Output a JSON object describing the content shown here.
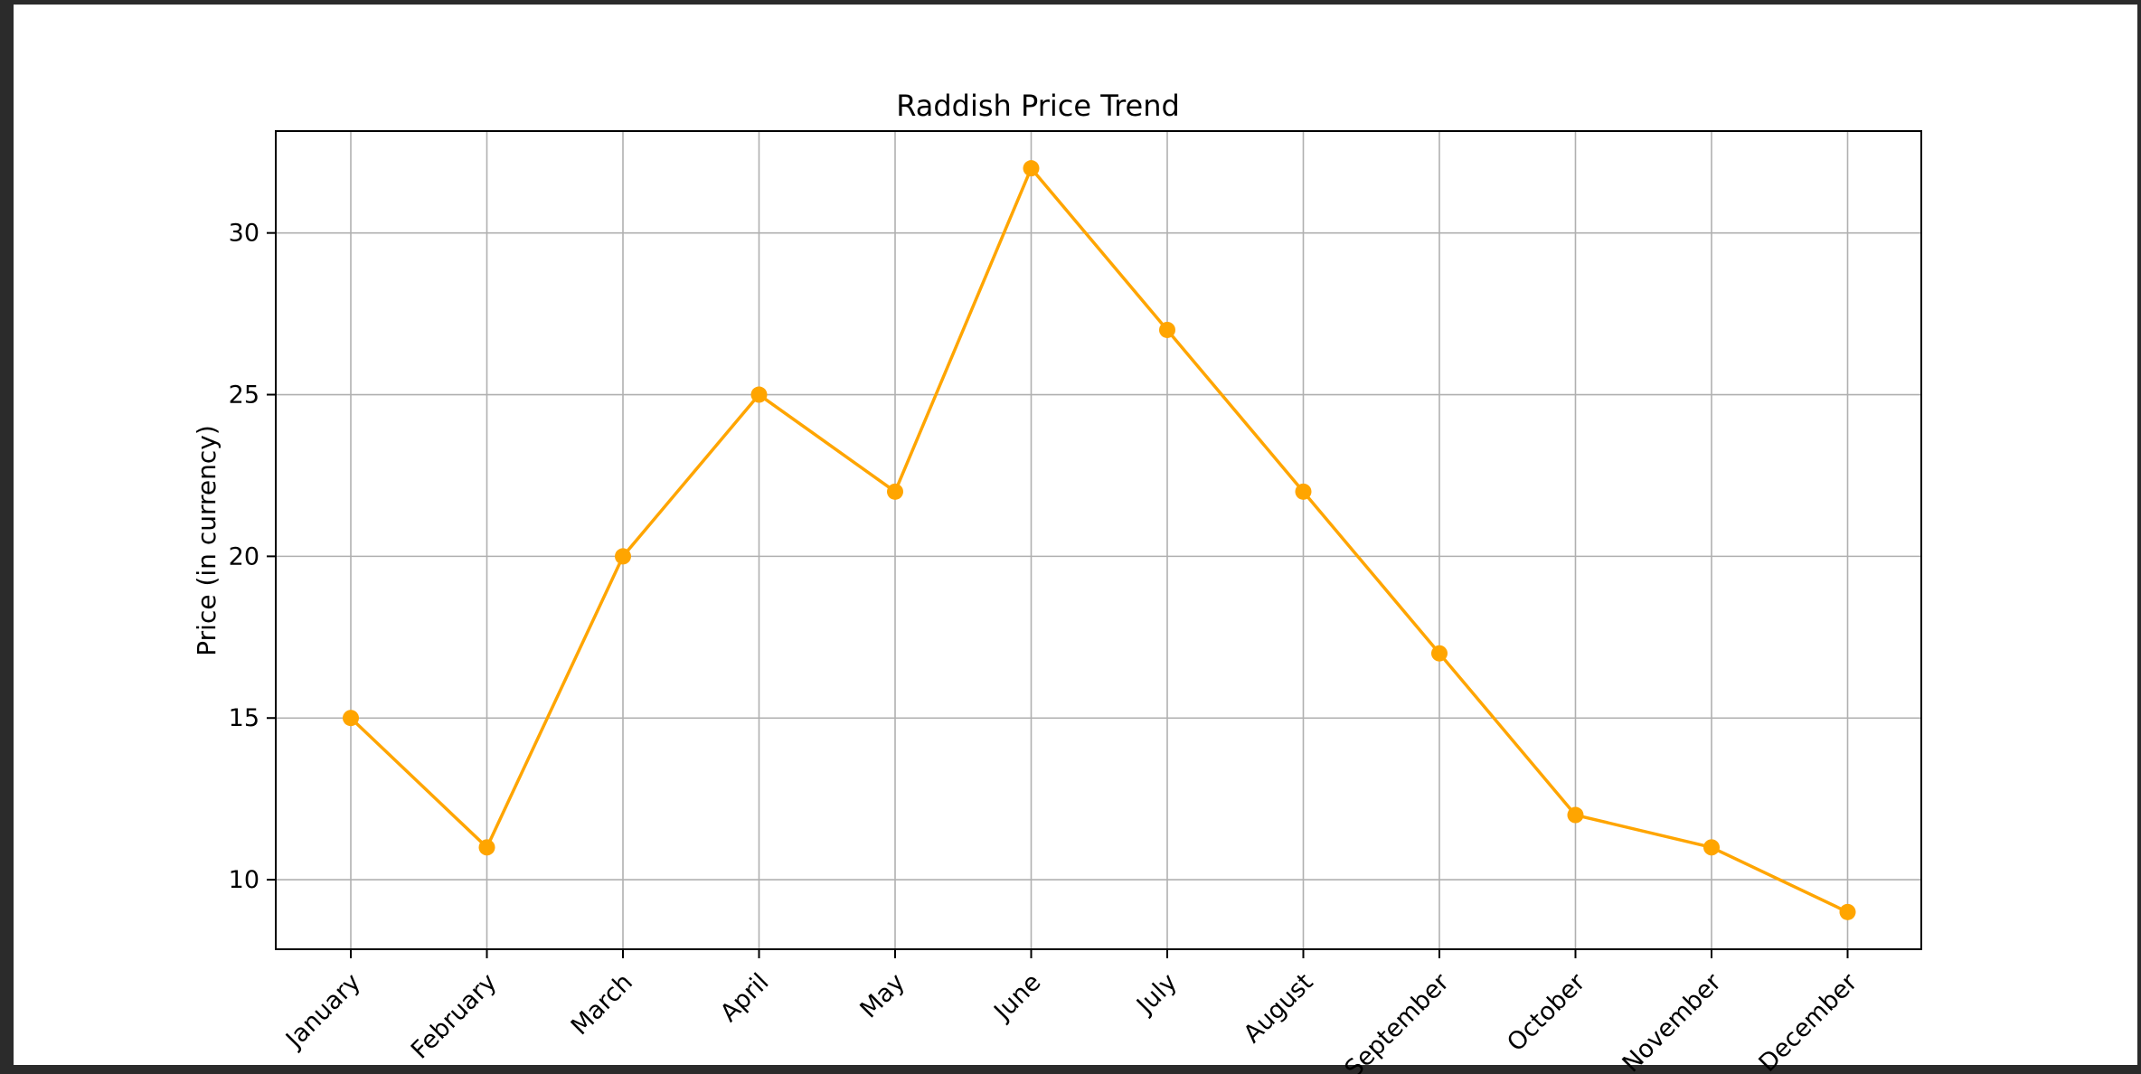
{
  "chart_data": {
    "type": "line",
    "title": "Raddish Price Trend",
    "xlabel": "",
    "ylabel": "Price (in currency)",
    "categories": [
      "January",
      "February",
      "March",
      "April",
      "May",
      "June",
      "July",
      "August",
      "September",
      "October",
      "November",
      "December"
    ],
    "series": [
      {
        "values": [
          15,
          11,
          20,
          25,
          22,
          32,
          27,
          22,
          17,
          12,
          11,
          9
        ]
      }
    ],
    "ylim": [
      7.85,
      33.15
    ],
    "yticks": [
      10,
      15,
      20,
      25,
      30
    ],
    "grid": true,
    "colors": {
      "line": "#FFA500",
      "marker": "#FFA500",
      "grid": "#b0b0b0",
      "axes": "#000000"
    }
  }
}
